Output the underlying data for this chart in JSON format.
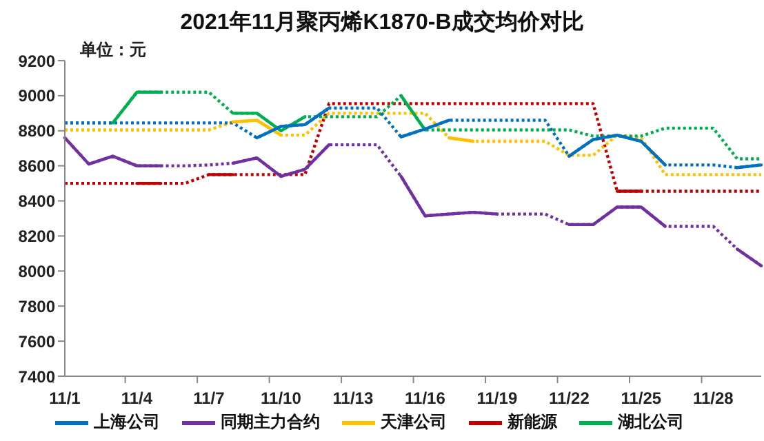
{
  "chart_data": {
    "type": "line",
    "title": "2021年11月聚丙烯K1870-B成交均价对比",
    "annotations": [
      "单位：元"
    ],
    "categories": [
      "11/1",
      null,
      null,
      "11/4",
      null,
      null,
      "11/7",
      null,
      null,
      "11/10",
      null,
      null,
      "11/13",
      null,
      null,
      "11/16",
      null,
      null,
      "11/19",
      null,
      null,
      "11/22",
      null,
      null,
      "11/25",
      null,
      null,
      "11/28",
      null,
      null
    ],
    "ylim": [
      7400,
      9200
    ],
    "yticks": [
      7400,
      7600,
      7800,
      8000,
      8200,
      8400,
      8600,
      8800,
      9000,
      9200
    ],
    "grid": false,
    "legend": "bottom",
    "marker": "none",
    "line_style": "solid",
    "series": [
      {
        "color": "#c00000",
        "line_style": "dotted",
        "values": [
          8500,
          8500,
          8500,
          8500,
          8500,
          8500,
          8550,
          8550,
          8550,
          8550,
          8550,
          8955,
          8955,
          8955,
          8955,
          8955,
          8955,
          8955,
          8955,
          8955,
          8955,
          8955,
          8955,
          8455,
          8455,
          8455,
          8455,
          8455,
          8455,
          8455
        ]
      },
      {
        "color": "#ffc000",
        "line_style": "dotted",
        "values": [
          8805,
          8805,
          8805,
          8805,
          8805,
          8805,
          8805,
          8850,
          8860,
          8775,
          8775,
          8900,
          8900,
          8900,
          8900,
          8900,
          8760,
          8740,
          8740,
          8740,
          8740,
          8660,
          8660,
          8775,
          8760,
          8550,
          8550,
          8550,
          8550,
          8550
        ]
      },
      {
        "color": "#00b050",
        "line_style": "dotted",
        "values": [
          8845,
          8845,
          8845,
          9020,
          9020,
          9020,
          9020,
          8900,
          8900,
          8800,
          8880,
          8880,
          8880,
          8880,
          9000,
          8805,
          8805,
          8805,
          8805,
          8805,
          8805,
          8805,
          8770,
          8770,
          8770,
          8815,
          8815,
          8815,
          8640,
          8640
        ]
      },
      {
        "color": "#0070c0",
        "line_style": "dotted",
        "values": [
          8845,
          8845,
          8845,
          8845,
          8845,
          8845,
          8845,
          8845,
          8760,
          8825,
          8835,
          8930,
          8930,
          8930,
          8765,
          8810,
          8860,
          8860,
          8860,
          8860,
          8860,
          8655,
          8750,
          8775,
          8740,
          8605,
          8605,
          8605,
          8590,
          8605
        ]
      },
      {
        "color": "#7030a0",
        "line_style": "dotted",
        "values": [
          8760,
          8610,
          8655,
          8600,
          8600,
          8600,
          8605,
          8615,
          8645,
          8540,
          8580,
          8720,
          8720,
          8720,
          8540,
          8315,
          8325,
          8335,
          8325,
          8325,
          8325,
          8265,
          8265,
          8365,
          8365,
          8255,
          8255,
          8255,
          8125,
          8030
        ]
      },
      {
        "name": "新能源",
        "color": "#c00000",
        "values": [
          null,
          null,
          null,
          8500,
          8500,
          null,
          8550,
          8550,
          null,
          null,
          null,
          null,
          null,
          null,
          null,
          null,
          null,
          null,
          null,
          null,
          null,
          null,
          null,
          8455,
          8455,
          null,
          null,
          null,
          null,
          null
        ]
      },
      {
        "name": "天津公司",
        "color": "#ffc000",
        "values": [
          null,
          null,
          null,
          null,
          null,
          null,
          null,
          8850,
          8860,
          8775,
          null,
          null,
          null,
          null,
          null,
          null,
          8760,
          8740,
          null,
          null,
          null,
          null,
          null,
          null,
          null,
          null,
          null,
          null,
          null,
          null
        ]
      },
      {
        "name": "湖北公司",
        "color": "#00b050",
        "values": [
          null,
          null,
          8845,
          9020,
          9020,
          null,
          null,
          8900,
          8900,
          8800,
          8880,
          null,
          null,
          null,
          9000,
          8805,
          null,
          null,
          null,
          null,
          null,
          null,
          null,
          null,
          null,
          null,
          null,
          null,
          null,
          null
        ]
      },
      {
        "name": "上海公司",
        "color": "#0070c0",
        "values": [
          null,
          null,
          null,
          null,
          null,
          null,
          null,
          null,
          8760,
          8825,
          8835,
          8930,
          null,
          null,
          8765,
          8810,
          8860,
          null,
          null,
          null,
          null,
          8655,
          8750,
          8775,
          8740,
          8605,
          null,
          null,
          8590,
          8605
        ]
      },
      {
        "name": "同期主力合约",
        "color": "#7030a0",
        "values": [
          8760,
          8610,
          8655,
          8600,
          8600,
          null,
          null,
          8615,
          8645,
          8540,
          8580,
          8720,
          null,
          null,
          8540,
          8315,
          8325,
          8335,
          8325,
          null,
          null,
          8265,
          8265,
          8365,
          8365,
          8255,
          null,
          null,
          8125,
          8030
        ]
      }
    ]
  }
}
